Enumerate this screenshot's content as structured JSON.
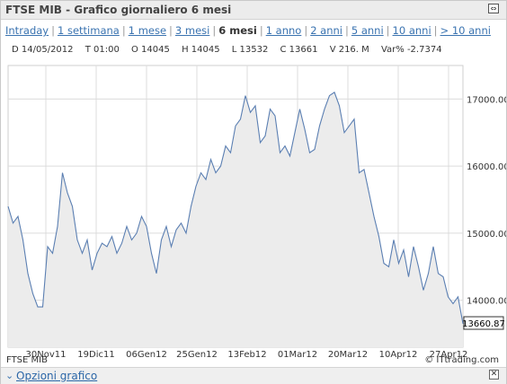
{
  "header": {
    "title": "FTSE MIB - Grafico giornaliero 6 mesi",
    "expand_icon": "expand-icon"
  },
  "periods": [
    {
      "label": "Intraday",
      "active": false
    },
    {
      "label": "1 settimana",
      "active": false
    },
    {
      "label": "1 mese",
      "active": false
    },
    {
      "label": "3 mesi",
      "active": false
    },
    {
      "label": "6 mesi",
      "active": true
    },
    {
      "label": "1 anno",
      "active": false
    },
    {
      "label": "2 anni",
      "active": false
    },
    {
      "label": "5 anni",
      "active": false
    },
    {
      "label": "10 anni",
      "active": false
    },
    {
      "label": "> 10 anni",
      "active": false
    }
  ],
  "ohlc": {
    "date": "D 14/05/2012",
    "time": "T 01:00",
    "open": "O 14045",
    "high": "H 14045",
    "low": "L 13532",
    "close": "C 13661",
    "volume": "V 216. M",
    "var": "Var% -2.7374"
  },
  "footer": {
    "left": "FTSE MIB",
    "right": "© ITtrading.com",
    "options_label": "Opzioni grafico"
  },
  "colors": {
    "line": "#5b7fb2",
    "area": "#ececec",
    "grid": "#dcdcdc",
    "link": "#3a73b0"
  },
  "chart_data": {
    "type": "area",
    "title": "",
    "xlabel": "",
    "ylabel": "",
    "x_ticks": [
      "30Nov11",
      "19Dic11",
      "06Gen12",
      "25Gen12",
      "13Feb12",
      "01Mar12",
      "20Mar12",
      "10Apr12",
      "27Apr12"
    ],
    "y_ticks": [
      "14000.00",
      "15000.00",
      "16000.00",
      "17000.00"
    ],
    "ylim": [
      13300,
      17500
    ],
    "last_value_label": "13660.87",
    "grid": true,
    "series": [
      {
        "values": [
          15400,
          15150,
          15250,
          14900,
          14400,
          14100,
          13900,
          13900,
          14800,
          14700,
          15100,
          15900,
          15600,
          15400,
          14900,
          14700,
          14900,
          14450,
          14700,
          14850,
          14800,
          14950,
          14700,
          14850,
          15100,
          14900,
          15000,
          15250,
          15100,
          14700,
          14400,
          14900,
          15100,
          14800,
          15050,
          15150,
          15000,
          15400,
          15700,
          15900,
          15800,
          16100,
          15900,
          16000,
          16300,
          16200,
          16600,
          16700,
          17050,
          16800,
          16900,
          16350,
          16450,
          16850,
          16750,
          16200,
          16300,
          16150,
          16500,
          16850,
          16550,
          16200,
          16250,
          16600,
          16850,
          17050,
          17100,
          16900,
          16500,
          16600,
          16700,
          15900,
          15950,
          15600,
          15250,
          14950,
          14550,
          14500,
          14900,
          14550,
          14750,
          14350,
          14800,
          14500,
          14150,
          14400,
          14800,
          14400,
          14350,
          14050,
          13950,
          14050,
          13650
        ]
      }
    ]
  }
}
